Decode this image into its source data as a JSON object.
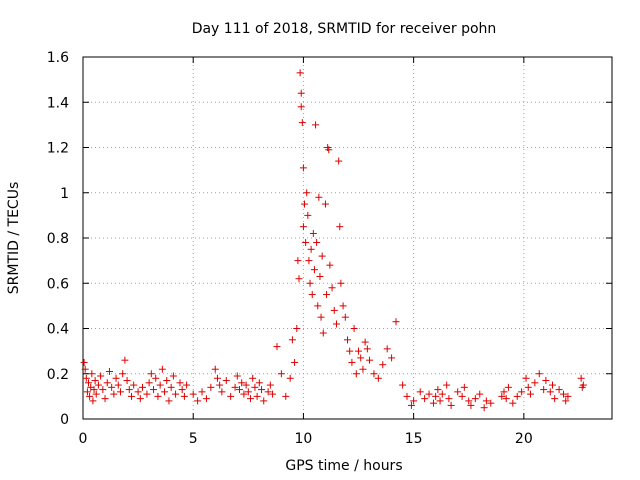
{
  "chart_data": {
    "type": "scatter",
    "title": "Day 111 of 2018, SRMTID for receiver pohn",
    "xlabel": "GPS time / hours",
    "ylabel": "SRMTID / TECUs",
    "xlim": [
      0,
      24
    ],
    "ylim": [
      0,
      1.6
    ],
    "xticks": [
      0,
      5,
      10,
      15,
      20
    ],
    "xtick_labels": [
      "0",
      "5",
      "10",
      "15",
      "20"
    ],
    "yticks": [
      0,
      0.2,
      0.4,
      0.6,
      0.8,
      1.0,
      1.2,
      1.4,
      1.6
    ],
    "ytick_labels": [
      "0",
      "0.2",
      "0.4",
      "0.6",
      "0.8",
      "1",
      "1.2",
      "1.4",
      "1.6"
    ],
    "grid": true,
    "marker": "+",
    "series": [
      {
        "name": "SRMTID",
        "color": "#dd0000",
        "points": [
          [
            0.05,
            0.25
          ],
          [
            0.1,
            0.22
          ],
          [
            0.15,
            0.18
          ],
          [
            0.2,
            0.12
          ],
          [
            0.25,
            0.16
          ],
          [
            0.3,
            0.1
          ],
          [
            0.35,
            0.14
          ],
          [
            0.4,
            0.2
          ],
          [
            0.45,
            0.08
          ],
          [
            0.5,
            0.13
          ],
          [
            0.55,
            0.17
          ],
          [
            0.6,
            0.11
          ],
          [
            0.7,
            0.15
          ],
          [
            0.8,
            0.19
          ],
          [
            0.9,
            0.13
          ],
          [
            1.0,
            0.09
          ],
          [
            1.1,
            0.16
          ],
          [
            1.2,
            0.21
          ],
          [
            1.3,
            0.14
          ],
          [
            1.4,
            0.11
          ],
          [
            1.5,
            0.18
          ],
          [
            1.6,
            0.15
          ],
          [
            1.7,
            0.12
          ],
          [
            1.8,
            0.2
          ],
          [
            1.9,
            0.26
          ],
          [
            2.0,
            0.17
          ],
          [
            2.1,
            0.13
          ],
          [
            2.2,
            0.1
          ],
          [
            2.3,
            0.15
          ],
          [
            2.5,
            0.12
          ],
          [
            2.6,
            0.09
          ],
          [
            2.7,
            0.14
          ],
          [
            2.9,
            0.11
          ],
          [
            3.0,
            0.16
          ],
          [
            3.1,
            0.2
          ],
          [
            3.2,
            0.13
          ],
          [
            3.3,
            0.18
          ],
          [
            3.4,
            0.1
          ],
          [
            3.5,
            0.15
          ],
          [
            3.6,
            0.22
          ],
          [
            3.7,
            0.12
          ],
          [
            3.8,
            0.17
          ],
          [
            3.9,
            0.08
          ],
          [
            4.0,
            0.14
          ],
          [
            4.1,
            0.19
          ],
          [
            4.2,
            0.11
          ],
          [
            4.4,
            0.16
          ],
          [
            4.5,
            0.13
          ],
          [
            4.6,
            0.1
          ],
          [
            4.7,
            0.15
          ],
          [
            5.0,
            0.11
          ],
          [
            5.2,
            0.08
          ],
          [
            5.4,
            0.12
          ],
          [
            5.6,
            0.09
          ],
          [
            5.8,
            0.14
          ],
          [
            6.0,
            0.22
          ],
          [
            6.1,
            0.18
          ],
          [
            6.2,
            0.15
          ],
          [
            6.3,
            0.12
          ],
          [
            6.5,
            0.17
          ],
          [
            6.7,
            0.1
          ],
          [
            6.9,
            0.14
          ],
          [
            7.0,
            0.19
          ],
          [
            7.1,
            0.13
          ],
          [
            7.2,
            0.16
          ],
          [
            7.3,
            0.11
          ],
          [
            7.4,
            0.15
          ],
          [
            7.5,
            0.12
          ],
          [
            7.6,
            0.09
          ],
          [
            7.7,
            0.18
          ],
          [
            7.8,
            0.14
          ],
          [
            7.9,
            0.1
          ],
          [
            8.0,
            0.16
          ],
          [
            8.1,
            0.13
          ],
          [
            8.2,
            0.08
          ],
          [
            8.4,
            0.12
          ],
          [
            8.5,
            0.15
          ],
          [
            8.6,
            0.11
          ],
          [
            8.8,
            0.32
          ],
          [
            9.0,
            0.2
          ],
          [
            9.2,
            0.1
          ],
          [
            9.4,
            0.18
          ],
          [
            9.5,
            0.35
          ],
          [
            9.6,
            0.25
          ],
          [
            9.7,
            0.4
          ],
          [
            9.75,
            0.7
          ],
          [
            9.8,
            0.62
          ],
          [
            9.85,
            1.53
          ],
          [
            9.9,
            1.44
          ],
          [
            9.95,
            1.31
          ],
          [
            9.9,
            1.38
          ],
          [
            10.0,
            1.11
          ],
          [
            10.0,
            0.85
          ],
          [
            10.05,
            0.95
          ],
          [
            10.1,
            0.78
          ],
          [
            10.15,
            1.0
          ],
          [
            10.2,
            0.9
          ],
          [
            10.25,
            0.7
          ],
          [
            10.3,
            0.6
          ],
          [
            10.35,
            0.75
          ],
          [
            10.4,
            0.55
          ],
          [
            10.45,
            0.82
          ],
          [
            10.5,
            0.66
          ],
          [
            10.55,
            1.3
          ],
          [
            10.6,
            0.78
          ],
          [
            10.65,
            0.5
          ],
          [
            10.7,
            0.98
          ],
          [
            10.75,
            0.63
          ],
          [
            10.8,
            0.45
          ],
          [
            10.85,
            0.72
          ],
          [
            10.9,
            0.38
          ],
          [
            11.0,
            0.95
          ],
          [
            11.05,
            0.55
          ],
          [
            11.1,
            1.2
          ],
          [
            11.15,
            1.19
          ],
          [
            11.2,
            0.68
          ],
          [
            11.3,
            0.58
          ],
          [
            11.4,
            0.48
          ],
          [
            11.5,
            0.42
          ],
          [
            11.6,
            1.14
          ],
          [
            11.65,
            0.85
          ],
          [
            11.7,
            0.6
          ],
          [
            11.8,
            0.5
          ],
          [
            11.9,
            0.45
          ],
          [
            12.0,
            0.35
          ],
          [
            12.1,
            0.3
          ],
          [
            12.2,
            0.25
          ],
          [
            12.3,
            0.4
          ],
          [
            12.4,
            0.2
          ],
          [
            12.5,
            0.3
          ],
          [
            12.6,
            0.27
          ],
          [
            12.7,
            0.22
          ],
          [
            12.8,
            0.34
          ],
          [
            12.9,
            0.31
          ],
          [
            13.0,
            0.26
          ],
          [
            13.2,
            0.2
          ],
          [
            13.4,
            0.18
          ],
          [
            13.6,
            0.24
          ],
          [
            13.8,
            0.31
          ],
          [
            14.0,
            0.27
          ],
          [
            14.2,
            0.43
          ],
          [
            14.5,
            0.15
          ],
          [
            14.7,
            0.1
          ],
          [
            14.9,
            0.06
          ],
          [
            15.0,
            0.08
          ],
          [
            15.3,
            0.12
          ],
          [
            15.5,
            0.09
          ],
          [
            15.7,
            0.11
          ],
          [
            15.9,
            0.07
          ],
          [
            16.0,
            0.1
          ],
          [
            16.1,
            0.13
          ],
          [
            16.2,
            0.08
          ],
          [
            16.3,
            0.11
          ],
          [
            16.5,
            0.15
          ],
          [
            16.6,
            0.09
          ],
          [
            16.7,
            0.06
          ],
          [
            17.0,
            0.12
          ],
          [
            17.2,
            0.1
          ],
          [
            17.3,
            0.14
          ],
          [
            17.5,
            0.08
          ],
          [
            17.6,
            0.06
          ],
          [
            17.8,
            0.09
          ],
          [
            18.0,
            0.11
          ],
          [
            18.2,
            0.05
          ],
          [
            18.3,
            0.08
          ],
          [
            18.5,
            0.07
          ],
          [
            19.0,
            0.1
          ],
          [
            19.1,
            0.12
          ],
          [
            19.2,
            0.09
          ],
          [
            19.3,
            0.14
          ],
          [
            19.5,
            0.07
          ],
          [
            19.7,
            0.1
          ],
          [
            19.9,
            0.12
          ],
          [
            20.1,
            0.18
          ],
          [
            20.2,
            0.14
          ],
          [
            20.3,
            0.11
          ],
          [
            20.5,
            0.16
          ],
          [
            20.7,
            0.2
          ],
          [
            20.9,
            0.13
          ],
          [
            21.0,
            0.17
          ],
          [
            21.2,
            0.12
          ],
          [
            21.3,
            0.15
          ],
          [
            21.4,
            0.09
          ],
          [
            21.6,
            0.13
          ],
          [
            21.8,
            0.11
          ],
          [
            21.9,
            0.08
          ],
          [
            22.0,
            0.1
          ],
          [
            22.6,
            0.18
          ],
          [
            22.65,
            0.14
          ],
          [
            22.7,
            0.15
          ]
        ]
      }
    ]
  }
}
